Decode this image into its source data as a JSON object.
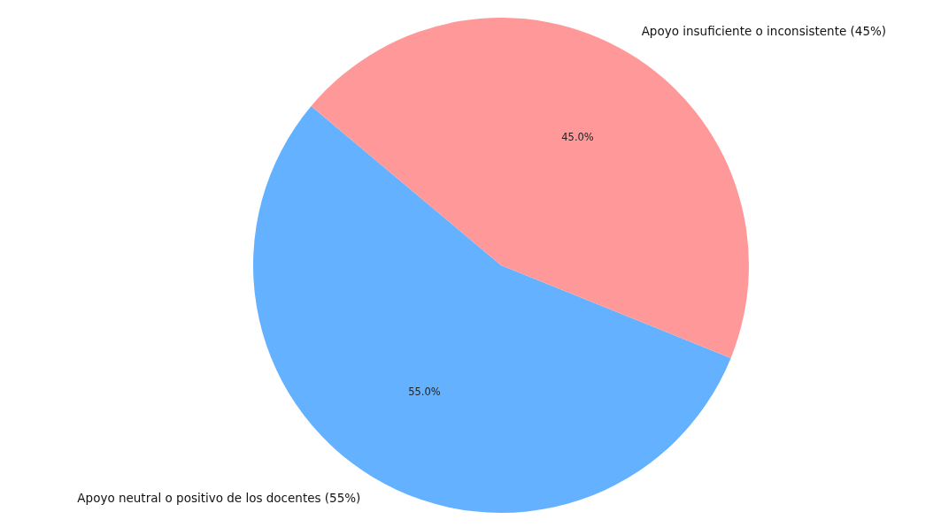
{
  "chart_data": {
    "type": "pie",
    "categories": [
      "Apoyo neutral o positivo de los docentes (55%)",
      "Apoyo insuficiente o inconsistente (45%)"
    ],
    "values": [
      55,
      45
    ],
    "colors": [
      "#64b1ff",
      "#ff9999"
    ],
    "value_labels": [
      "55.0%",
      "45.0%"
    ]
  }
}
